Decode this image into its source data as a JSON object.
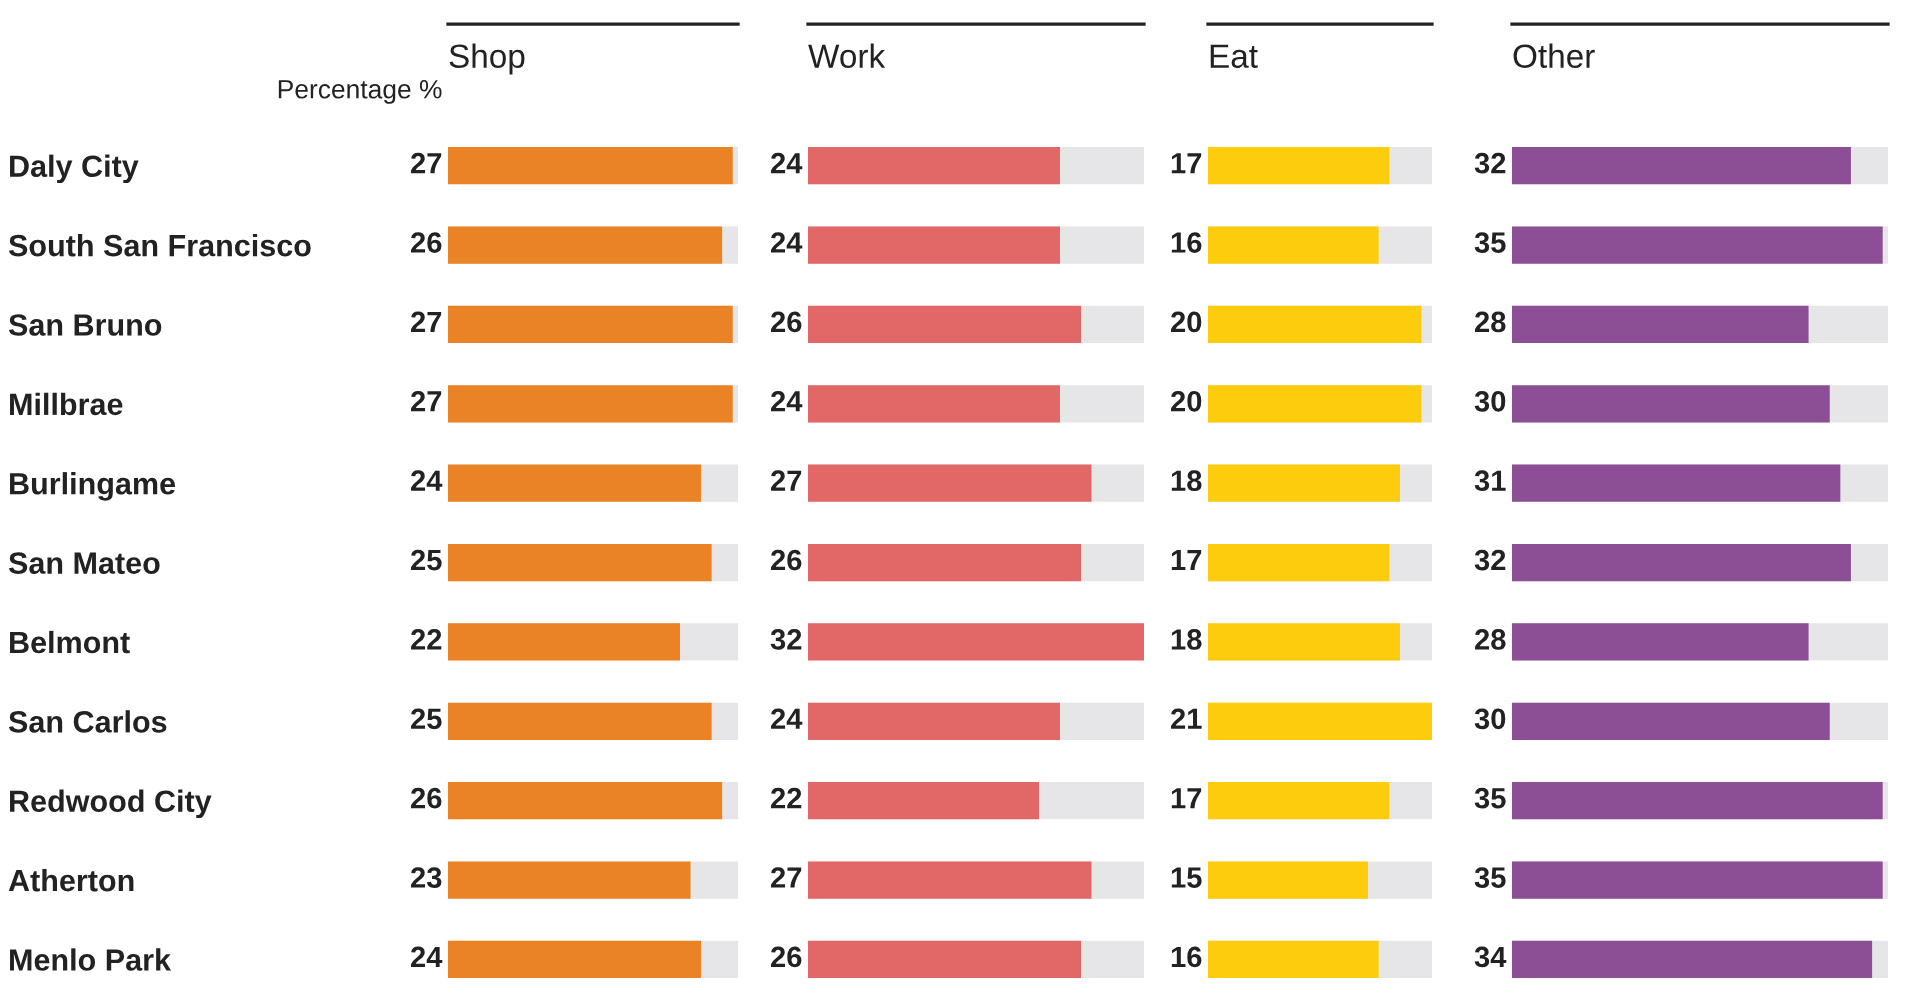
{
  "chart_data": [
    {
      "type": "bar",
      "orientation": "horizontal",
      "title": "Shop",
      "annotations": [
        "Percentage %"
      ],
      "categories": [
        "Daly City",
        "South San Francisco",
        "San Bruno",
        "Millbrae",
        "Burlingame",
        "San Mateo",
        "Belmont",
        "San Carlos",
        "Redwood City",
        "Atherton",
        "Menlo Park"
      ],
      "values": [
        27,
        26,
        27,
        27,
        24,
        25,
        22,
        25,
        26,
        23,
        24
      ],
      "color": "#e98325",
      "xlim": [
        0,
        27.5
      ],
      "data_labels": true,
      "tick_labels": "y"
    },
    {
      "type": "bar",
      "orientation": "horizontal",
      "title": "Work",
      "categories": [
        null,
        null,
        null,
        null,
        null,
        null,
        null,
        null,
        null,
        null,
        null
      ],
      "values": [
        24,
        24,
        26,
        24,
        27,
        26,
        32,
        24,
        22,
        27,
        26
      ],
      "color": "#e26767",
      "xlim": [
        0,
        32
      ],
      "data_labels": true,
      "tick_labels": false
    },
    {
      "type": "bar",
      "orientation": "horizontal",
      "title": "Eat",
      "categories": [
        null,
        null,
        null,
        null,
        null,
        null,
        null,
        null,
        null,
        null,
        null
      ],
      "values": [
        17,
        16,
        20,
        20,
        18,
        17,
        18,
        21,
        17,
        15,
        16
      ],
      "color": "#fdcc0d",
      "xlim": [
        0,
        21
      ],
      "data_labels": true,
      "tick_labels": false
    },
    {
      "type": "bar",
      "orientation": "horizontal",
      "title": "Other",
      "categories": [
        null,
        null,
        null,
        null,
        null,
        null,
        null,
        null,
        null,
        null,
        null
      ],
      "values": [
        32,
        35,
        28,
        30,
        31,
        32,
        28,
        30,
        35,
        35,
        34
      ],
      "color": "#8c4f95",
      "xlim": [
        0,
        35.5
      ],
      "data_labels": true,
      "tick_labels": false
    }
  ]
}
